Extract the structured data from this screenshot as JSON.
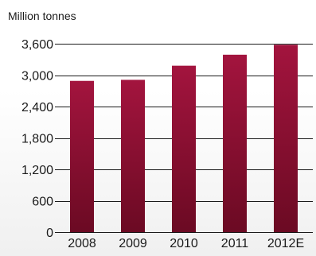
{
  "chart_data": {
    "type": "bar",
    "title": "",
    "xlabel": "",
    "ylabel": "Million tonnes",
    "categories": [
      "2008",
      "2009",
      "2010",
      "2011",
      "2012E"
    ],
    "values": [
      2890,
      2910,
      3180,
      3390,
      3580
    ],
    "ylim": [
      0,
      3600
    ],
    "yticks": [
      0,
      600,
      1200,
      1800,
      2400,
      3000,
      3600
    ],
    "ytick_labels": [
      "0",
      "600",
      "1,200",
      "1,800",
      "2,400",
      "3,000",
      "3,600"
    ],
    "grid": true,
    "legend": "none",
    "colors": {
      "bar_top": "#a3143e",
      "bar_bottom": "#6b0a23",
      "text": "#1a1a1a",
      "grid": "#1a1a1a"
    }
  }
}
